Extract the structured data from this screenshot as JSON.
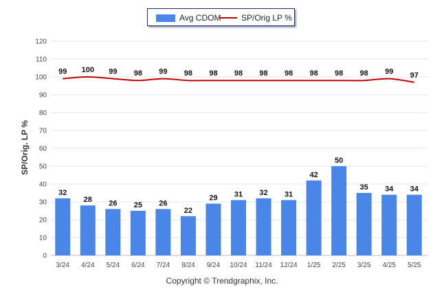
{
  "legend": {
    "bar_label": "Avg CDOM",
    "line_label": "SP/Orig LP %"
  },
  "y_axis_title": "SP/Orig. LP %",
  "footer": "Copyright © Trendgraphix, Inc.",
  "colors": {
    "bar": "#4a86e8",
    "line": "#c00000",
    "grid": "#e6e6e6"
  },
  "chart_data": {
    "type": "bar",
    "categories": [
      "3/24",
      "4/24",
      "5/24",
      "6/24",
      "7/24",
      "8/24",
      "9/24",
      "10/24",
      "11/24",
      "12/24",
      "1/25",
      "2/25",
      "3/25",
      "4/25",
      "5/25"
    ],
    "series": [
      {
        "name": "Avg CDOM",
        "type": "bar",
        "values": [
          32,
          28,
          26,
          25,
          26,
          22,
          29,
          31,
          32,
          31,
          42,
          50,
          35,
          34,
          34
        ]
      },
      {
        "name": "SP/Orig LP %",
        "type": "line",
        "values": [
          99,
          100,
          99,
          98,
          99,
          98,
          98,
          98,
          98,
          98,
          98,
          98,
          98,
          99,
          97
        ]
      }
    ],
    "ylabel": "SP/Orig. LP %",
    "xlabel": "",
    "ylim": [
      0,
      120
    ],
    "yticks": [
      0,
      10,
      20,
      30,
      40,
      50,
      60,
      70,
      80,
      90,
      100,
      110,
      120
    ],
    "grid": true,
    "legend_position": "top-center"
  }
}
